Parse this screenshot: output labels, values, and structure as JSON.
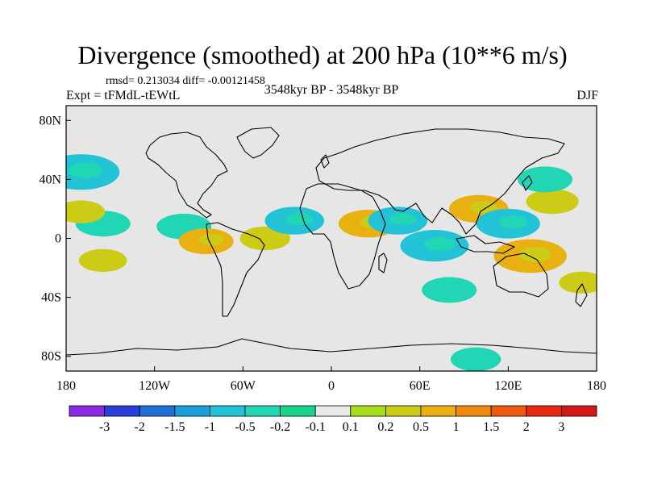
{
  "title": "Divergence (smoothed) at 200 hPa (10**6 m/s)",
  "stats": "rmsd= 0.213034  diff= -0.00121458",
  "experiment": "Expt = tFMdL-tEWtL",
  "period": "3548kyr BP - 3548kyr BP",
  "season": "DJF",
  "map": {
    "lat_ticks": [
      "80N",
      "40N",
      "0",
      "40S",
      "80S"
    ],
    "lon_ticks": [
      "180",
      "120W",
      "60W",
      "0",
      "60E",
      "120E",
      "180"
    ],
    "background_color": "#e6e6e6"
  },
  "colorbar": {
    "levels": [
      "-3",
      "-2",
      "-1.5",
      "-1",
      "-0.5",
      "-0.2",
      "-0.1",
      "0.1",
      "0.2",
      "0.5",
      "1",
      "1.5",
      "2",
      "3"
    ],
    "colors": [
      "#8a2be2",
      "#2a3fd8",
      "#1e6fd6",
      "#1a9fd8",
      "#22c3d6",
      "#20d6b4",
      "#1ad48c",
      "#e8e8e8",
      "#a6dc1c",
      "#cccc16",
      "#e8b010",
      "#ef8a0e",
      "#f05a10",
      "#e82a14",
      "#d41818"
    ]
  },
  "chart_data": {
    "type": "heatmap",
    "title": "Divergence (smoothed) at 200 hPa (10**6 m/s)",
    "variable": "200 hPa divergence difference",
    "units": "10**6 m/s",
    "x_range": [
      -180,
      180
    ],
    "y_range": [
      -90,
      90
    ],
    "contour_levels": [
      -3,
      -2,
      -1.5,
      -1,
      -0.5,
      -0.2,
      -0.1,
      0.1,
      0.2,
      0.5,
      1,
      1.5,
      2,
      3
    ],
    "features": [
      {
        "value": -1.0,
        "lon": -170,
        "lat": 45
      },
      {
        "value": -0.5,
        "lon": -155,
        "lat": 10
      },
      {
        "value": 0.35,
        "lon": -170,
        "lat": 18
      },
      {
        "value": 0.35,
        "lon": -155,
        "lat": -15
      },
      {
        "value": -0.5,
        "lon": -100,
        "lat": 8
      },
      {
        "value": 0.5,
        "lon": -85,
        "lat": -2
      },
      {
        "value": 0.4,
        "lon": -45,
        "lat": 0
      },
      {
        "value": -0.6,
        "lon": -25,
        "lat": 12
      },
      {
        "value": 0.6,
        "lon": 25,
        "lat": 10
      },
      {
        "value": -0.6,
        "lon": 45,
        "lat": 12
      },
      {
        "value": -0.8,
        "lon": 70,
        "lat": -5
      },
      {
        "value": 0.6,
        "lon": 100,
        "lat": 20
      },
      {
        "value": -0.7,
        "lon": 120,
        "lat": 10
      },
      {
        "value": 0.45,
        "lon": 150,
        "lat": 25
      },
      {
        "value": 0.9,
        "lon": 135,
        "lat": -12
      },
      {
        "value": -0.5,
        "lon": 145,
        "lat": 40
      },
      {
        "value": 0.3,
        "lon": 170,
        "lat": -30
      },
      {
        "value": -0.5,
        "lon": 80,
        "lat": -35
      },
      {
        "value": -0.4,
        "lon": 98,
        "lat": -82
      }
    ]
  }
}
